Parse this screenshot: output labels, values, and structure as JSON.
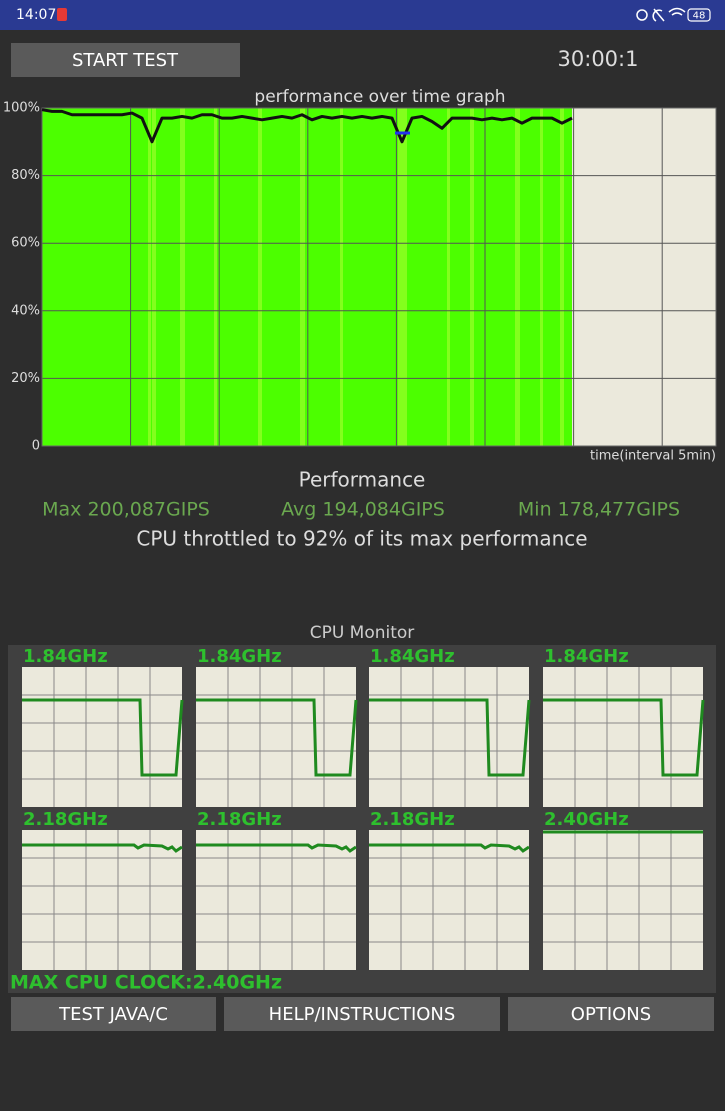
{
  "status_bar": {
    "time": "14:07",
    "battery": "48"
  },
  "controls": {
    "start_button": "START TEST",
    "timer": "30:00:1"
  },
  "performance_graph": {
    "title": "performance over time graph",
    "ylim": [
      0,
      100
    ],
    "yticks": [
      0,
      {
        "value": 20,
        "label": "20%"
      },
      {
        "value": 40,
        "label": "40%"
      },
      {
        "value": 60,
        "label": "60%"
      },
      {
        "value": 80,
        "label": "80%"
      },
      {
        "value": 100,
        "label": "100%"
      }
    ],
    "x_label": "time(interval 5min)",
    "values": [
      99.5,
      99,
      99,
      98,
      98,
      98,
      98,
      98,
      98,
      98.5,
      97,
      90,
      97,
      97,
      97.5,
      97,
      98,
      98,
      97,
      97,
      97.5,
      97,
      96.5,
      97,
      97.5,
      97,
      98,
      96.5,
      97.5,
      97,
      97.5,
      97,
      97.5,
      97,
      97.5,
      97,
      90,
      97,
      97.5,
      96,
      94,
      97,
      97,
      97,
      96.5,
      97,
      96.5,
      97,
      95.5,
      97,
      97,
      97,
      95.5,
      97
    ]
  },
  "performance": {
    "title": "Performance",
    "max": "Max 200,087GIPS",
    "avg": "Avg 194,084GIPS",
    "min": "Min 178,477GIPS",
    "summary": "CPU throttled to 92% of its max performance"
  },
  "cpu_monitor": {
    "title": "CPU Monitor",
    "cores": [
      {
        "label": "1.84GHz"
      },
      {
        "label": "1.84GHz"
      },
      {
        "label": "1.84GHz"
      },
      {
        "label": "1.84GHz"
      },
      {
        "label": "2.18GHz"
      },
      {
        "label": "2.18GHz"
      },
      {
        "label": "2.18GHz"
      },
      {
        "label": "2.40GHz"
      }
    ],
    "max_clock": "MAX CPU CLOCK:2.40GHz"
  },
  "buttons": [
    "TEST JAVA/C",
    "HELP/INSTRUCTIONS",
    "OPTIONS"
  ]
}
